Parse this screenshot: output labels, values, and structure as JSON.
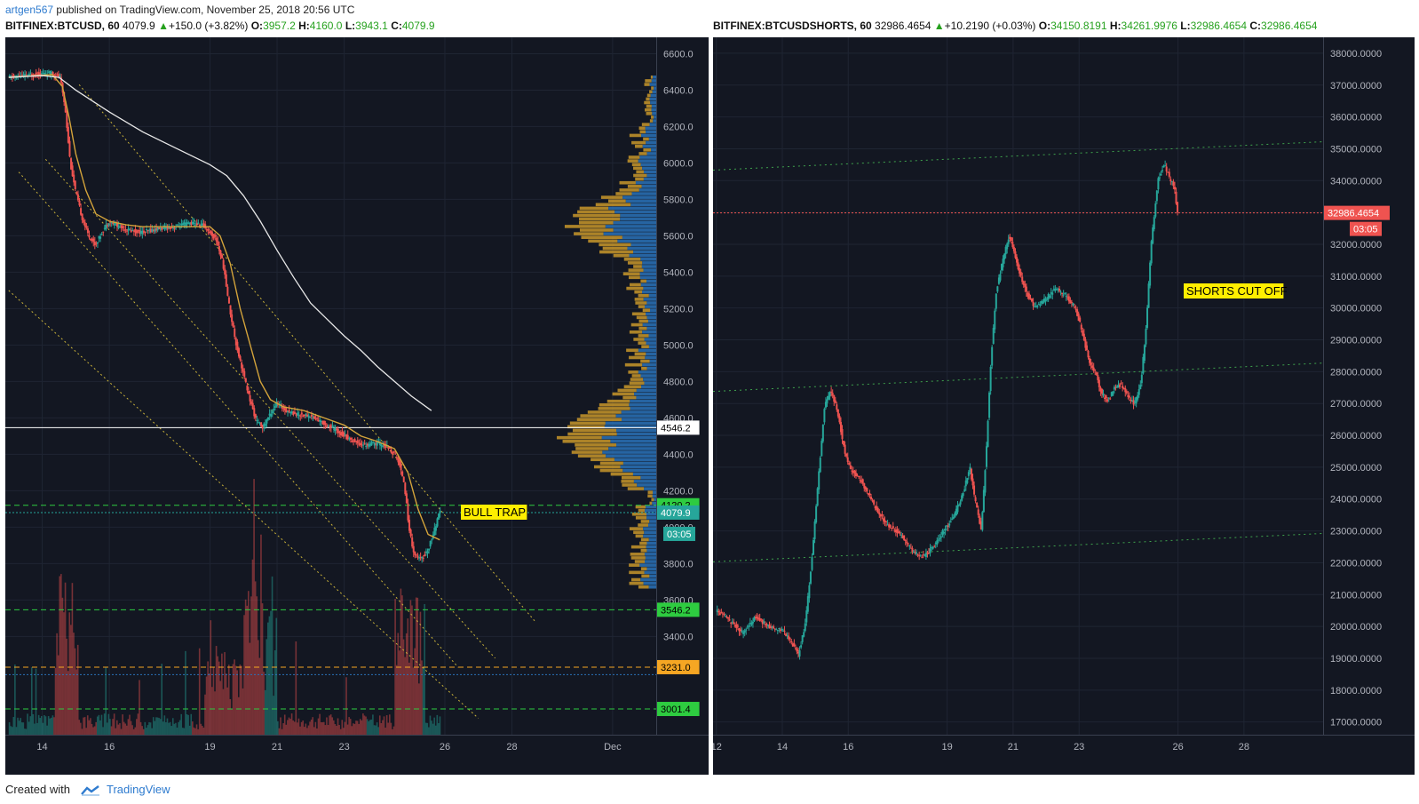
{
  "header": {
    "user": "artgen567",
    "published": "published on TradingView.com, November 25, 2018 20:56 UTC"
  },
  "chart_left": {
    "symbol": "BITFINEX:BTCUSD, 60",
    "last": "4079.9",
    "change": "+150.0 (+3.82%)",
    "o_label": "O:",
    "o": "3957.2",
    "h_label": "H:",
    "h": "4160.0",
    "l_label": "L:",
    "l": "3943.1",
    "c_label": "C:",
    "c": "4079.9"
  },
  "chart_right": {
    "symbol": "BITFINEX:BTCUSDSHORTS, 60",
    "last": "32986.4654",
    "change": "+10.2190 (+0.03%)",
    "o_label": "O:",
    "o": "34150.8191",
    "h_label": "H:",
    "h": "34261.9976",
    "l_label": "L:",
    "l": "32986.4654",
    "c_label": "C:",
    "c": "32986.4654"
  },
  "footer": {
    "created": "Created with",
    "brand": "TradingView"
  },
  "colors": {
    "up": "#26a69a",
    "down": "#ef5350",
    "ma_fast": "#d4a43b",
    "ma_slow": "#e8e8e8",
    "channel": "#c9b23a",
    "level_green": "#2ecc40",
    "level_orange": "#f5a623",
    "vp_up": "#2a72b8",
    "vp_down": "#c8962a",
    "panel_bg": "#131722"
  },
  "chart_data": [
    {
      "type": "line",
      "name": "BITFINEX:BTCUSD",
      "x_ticks": [
        "14",
        "16",
        "19",
        "21",
        "23",
        "26",
        "28",
        "Dec"
      ],
      "y_ticks": [
        "3400.0",
        "3600.0",
        "3800.0",
        "4000.0",
        "4200.0",
        "4400.0",
        "4600.0",
        "4800.0",
        "5000.0",
        "5200.0",
        "5400.0",
        "5600.0",
        "5800.0",
        "6000.0",
        "6200.0",
        "6400.0",
        "6600.0"
      ],
      "ylim": [
        2860,
        6690
      ],
      "x_range_days": [
        12.9,
        32.3
      ],
      "price_path": [
        [
          13.0,
          6470
        ],
        [
          13.5,
          6480
        ],
        [
          14.0,
          6490
        ],
        [
          14.3,
          6495
        ],
        [
          14.55,
          6470
        ],
        [
          14.7,
          6300
        ],
        [
          14.85,
          6000
        ],
        [
          15.0,
          5850
        ],
        [
          15.2,
          5700
        ],
        [
          15.4,
          5600
        ],
        [
          15.6,
          5550
        ],
        [
          15.8,
          5620
        ],
        [
          16.0,
          5680
        ],
        [
          16.3,
          5650
        ],
        [
          16.6,
          5630
        ],
        [
          17.0,
          5620
        ],
        [
          17.5,
          5640
        ],
        [
          18.0,
          5650
        ],
        [
          18.4,
          5670
        ],
        [
          18.8,
          5660
        ],
        [
          19.2,
          5580
        ],
        [
          19.4,
          5450
        ],
        [
          19.6,
          5200
        ],
        [
          19.8,
          5000
        ],
        [
          20.0,
          4850
        ],
        [
          20.2,
          4700
        ],
        [
          20.4,
          4580
        ],
        [
          20.6,
          4550
        ],
        [
          20.8,
          4620
        ],
        [
          21.0,
          4680
        ],
        [
          21.3,
          4640
        ],
        [
          21.6,
          4620
        ],
        [
          22.0,
          4610
        ],
        [
          22.4,
          4570
        ],
        [
          22.8,
          4530
        ],
        [
          23.2,
          4480
        ],
        [
          23.6,
          4450
        ],
        [
          24.0,
          4460
        ],
        [
          24.3,
          4440
        ],
        [
          24.6,
          4380
        ],
        [
          24.8,
          4250
        ],
        [
          24.95,
          3990
        ],
        [
          25.1,
          3850
        ],
        [
          25.3,
          3820
        ],
        [
          25.5,
          3870
        ],
        [
          25.7,
          3980
        ],
        [
          25.85,
          4080
        ]
      ],
      "ma_fast": [
        [
          13.0,
          6470
        ],
        [
          14.3,
          6485
        ],
        [
          14.6,
          6420
        ],
        [
          14.8,
          6250
        ],
        [
          15.0,
          6050
        ],
        [
          15.3,
          5850
        ],
        [
          15.6,
          5720
        ],
        [
          16.0,
          5680
        ],
        [
          16.5,
          5660
        ],
        [
          17.0,
          5650
        ],
        [
          18.0,
          5650
        ],
        [
          19.0,
          5650
        ],
        [
          19.3,
          5600
        ],
        [
          19.6,
          5450
        ],
        [
          19.9,
          5200
        ],
        [
          20.2,
          5000
        ],
        [
          20.5,
          4800
        ],
        [
          20.8,
          4700
        ],
        [
          21.2,
          4660
        ],
        [
          21.8,
          4640
        ],
        [
          22.4,
          4600
        ],
        [
          23.0,
          4560
        ],
        [
          23.5,
          4500
        ],
        [
          24.0,
          4470
        ],
        [
          24.5,
          4430
        ],
        [
          24.9,
          4300
        ],
        [
          25.2,
          4100
        ],
        [
          25.5,
          3960
        ],
        [
          25.85,
          3930
        ]
      ],
      "ma_slow": [
        [
          13.0,
          6470
        ],
        [
          14.0,
          6480
        ],
        [
          14.5,
          6470
        ],
        [
          15.0,
          6400
        ],
        [
          16.0,
          6280
        ],
        [
          17.0,
          6170
        ],
        [
          18.0,
          6080
        ],
        [
          19.0,
          5990
        ],
        [
          19.5,
          5930
        ],
        [
          20.0,
          5820
        ],
        [
          20.5,
          5680
        ],
        [
          21.0,
          5520
        ],
        [
          21.5,
          5370
        ],
        [
          22.0,
          5230
        ],
        [
          22.5,
          5140
        ],
        [
          23.0,
          5050
        ],
        [
          23.5,
          4970
        ],
        [
          24.0,
          4880
        ],
        [
          24.5,
          4800
        ],
        [
          25.0,
          4720
        ],
        [
          25.6,
          4640
        ]
      ],
      "channels": [
        [
          [
            15.1,
            6430
          ],
          [
            28.7,
            3480
          ]
        ],
        [
          [
            14.1,
            6020
          ],
          [
            27.5,
            3280
          ]
        ],
        [
          [
            13.3,
            5950
          ],
          [
            26.4,
            3230
          ]
        ],
        [
          [
            13.0,
            5300
          ],
          [
            27.0,
            2950
          ]
        ]
      ],
      "levels": [
        {
          "price": 4546.2,
          "label": "4546.2",
          "style": "solid",
          "color": "#ffffff"
        },
        {
          "price": 4120.2,
          "label": "4120.2",
          "style": "dashed",
          "color": "#2ecc40"
        },
        {
          "price": 4079.9,
          "label": "4079.9",
          "style": "dotted",
          "color": "#26a69a"
        },
        {
          "price": 3546.2,
          "label": "3546.2",
          "style": "dashed",
          "color": "#2ecc40"
        },
        {
          "price": 3231.0,
          "label": "3231.0",
          "style": "dashed",
          "color": "#f5a623"
        },
        {
          "price": 3190.0,
          "label": "",
          "style": "dotted",
          "color": "#2a72b8"
        },
        {
          "price": 3001.4,
          "label": "3001.4",
          "style": "dashed",
          "color": "#2ecc40"
        }
      ],
      "price_countdown": "03:05",
      "annotation": "BULL TRAP"
    },
    {
      "type": "line",
      "name": "BITFINEX:BTCUSDSHORTS",
      "x_ticks": [
        "12",
        "14",
        "16",
        "19",
        "21",
        "23",
        "26",
        "28"
      ],
      "y_ticks": [
        "17000.0000",
        "18000.0000",
        "19000.0000",
        "20000.0000",
        "21000.0000",
        "22000.0000",
        "23000.0000",
        "24000.0000",
        "25000.0000",
        "26000.0000",
        "27000.0000",
        "28000.0000",
        "29000.0000",
        "30000.0000",
        "31000.0000",
        "32000.0000",
        "33000.0000",
        "34000.0000",
        "35000.0000",
        "36000.0000",
        "37000.0000",
        "38000.0000"
      ],
      "ylim": [
        16600,
        38500
      ],
      "x_range_days": [
        11.9,
        30.4
      ],
      "price_path": [
        [
          12.0,
          20500
        ],
        [
          12.4,
          20200
        ],
        [
          12.8,
          19800
        ],
        [
          13.2,
          20300
        ],
        [
          13.6,
          20000
        ],
        [
          14.0,
          19900
        ],
        [
          14.3,
          19500
        ],
        [
          14.5,
          19100
        ],
        [
          14.7,
          20000
        ],
        [
          14.9,
          22000
        ],
        [
          15.1,
          24500
        ],
        [
          15.3,
          27000
        ],
        [
          15.5,
          27400
        ],
        [
          15.7,
          26700
        ],
        [
          15.9,
          25500
        ],
        [
          16.1,
          24900
        ],
        [
          16.4,
          24600
        ],
        [
          16.8,
          23800
        ],
        [
          17.2,
          23200
        ],
        [
          17.6,
          22900
        ],
        [
          18.0,
          22300
        ],
        [
          18.3,
          22200
        ],
        [
          18.6,
          22500
        ],
        [
          18.9,
          23000
        ],
        [
          19.2,
          23400
        ],
        [
          19.5,
          24200
        ],
        [
          19.7,
          25000
        ],
        [
          19.85,
          24000
        ],
        [
          20.05,
          23000
        ],
        [
          20.2,
          25500
        ],
        [
          20.35,
          28500
        ],
        [
          20.5,
          30500
        ],
        [
          20.7,
          31500
        ],
        [
          20.9,
          32300
        ],
        [
          21.1,
          31500
        ],
        [
          21.3,
          30800
        ],
        [
          21.5,
          30300
        ],
        [
          21.7,
          30000
        ],
        [
          22.0,
          30300
        ],
        [
          22.3,
          30600
        ],
        [
          22.6,
          30400
        ],
        [
          22.9,
          30000
        ],
        [
          23.1,
          29300
        ],
        [
          23.3,
          28400
        ],
        [
          23.5,
          28000
        ],
        [
          23.7,
          27300
        ],
        [
          23.9,
          27100
        ],
        [
          24.1,
          27500
        ],
        [
          24.3,
          27600
        ],
        [
          24.5,
          27200
        ],
        [
          24.7,
          27000
        ],
        [
          24.9,
          27700
        ],
        [
          25.05,
          29500
        ],
        [
          25.2,
          32000
        ],
        [
          25.4,
          34000
        ],
        [
          25.6,
          34500
        ],
        [
          25.75,
          34100
        ],
        [
          25.9,
          33800
        ],
        [
          26.0,
          32986
        ]
      ],
      "channels": [
        [
          [
            11.9,
            34330
          ],
          [
            30.4,
            35220
          ]
        ],
        [
          [
            11.9,
            27380
          ],
          [
            30.4,
            28270
          ]
        ],
        [
          [
            11.9,
            22030
          ],
          [
            30.4,
            22920
          ]
        ]
      ],
      "levels": [
        {
          "price": 32986.4654,
          "label": "32986.4654",
          "style": "dotted",
          "color": "#ef5350"
        }
      ],
      "price_countdown": "03:05",
      "annotation": "SHORTS CUT OFF"
    }
  ]
}
